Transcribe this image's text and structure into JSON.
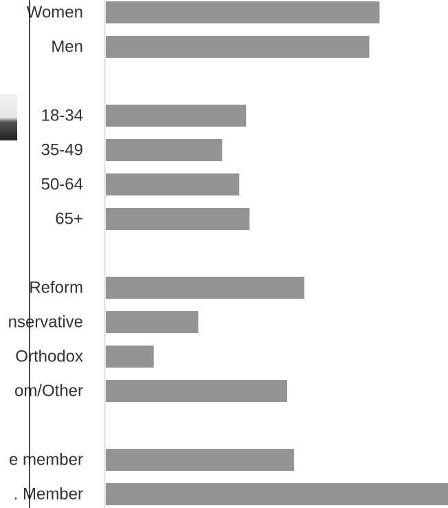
{
  "chart_data": {
    "type": "bar",
    "orientation": "horizontal",
    "color": "#939393",
    "categories": [
      "Women",
      "Men",
      null,
      "18-34",
      "35-49",
      "50-64",
      "65+",
      null,
      "Reform",
      "nservative",
      "Orthodox",
      "om/Other",
      null,
      "e member",
      ". Member"
    ],
    "values": [
      80,
      77,
      null,
      41,
      34,
      39,
      42,
      null,
      58,
      27,
      14,
      53,
      null,
      55,
      100
    ],
    "xlim": [
      0,
      100
    ]
  }
}
